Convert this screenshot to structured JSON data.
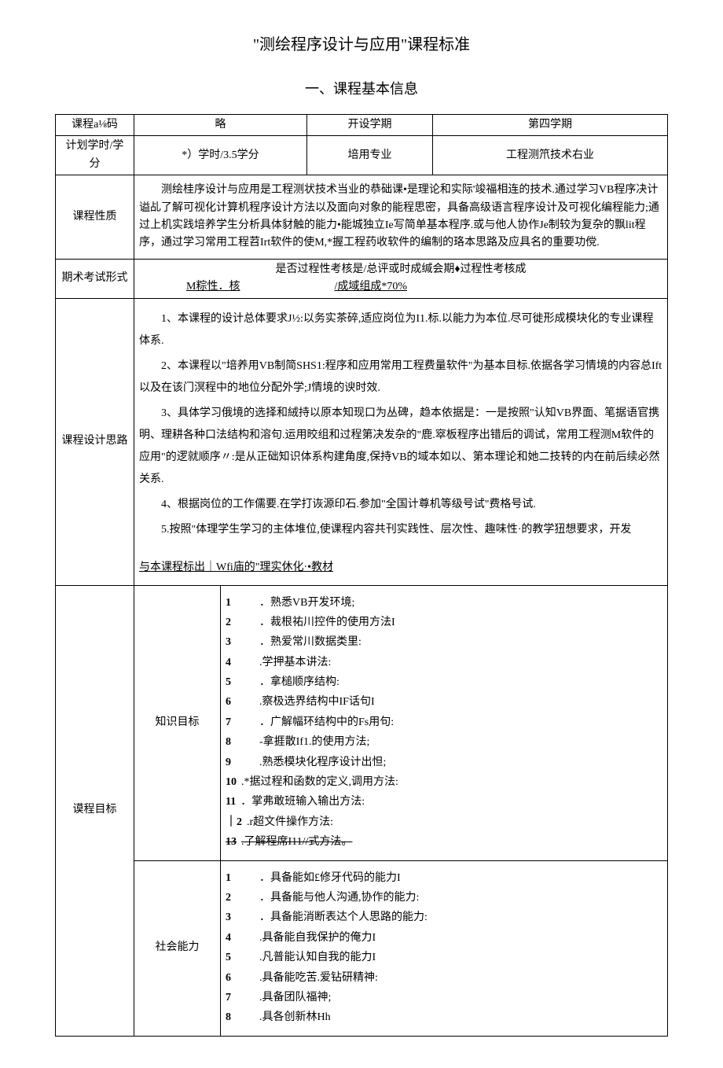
{
  "doc": {
    "title": "\"测绘程序设计与应用\"课程标准",
    "section1": "一、课程基本信息"
  },
  "rows": {
    "code_label": "课程a⅛码",
    "code_value": "略",
    "term_label": "开设学期",
    "term_value": "第四学期",
    "hours_label": "计划学时/学分",
    "hours_value": "*）学时/3.5学分",
    "major_label": "培用专业",
    "major_value": "工程测笊技术右业",
    "nature_label": "课程性质",
    "nature_text": "测绘桂序设计与应用是工程测状技术当业的恭础课•是理论和实际'竣福相连的技术.通过学习VB程序决计谥乩了解可视化计算机程序设计方法以及面向对象的能程思密，具备高级语言程序设计及可视化编程能力;通过上机实践培养学生分析具体豺触的能力•能城独立Ie写简单基本程序.或与他人协作Je制较为复杂的飘lit程序，通过学习常用工程苕Irt软件的使M,*握工程药收软件的编制的珞本思路及应具名的重要功傥.",
    "exam_label": "期术考试形式",
    "exam_line1": "是否过程性考核是/总评或时成缄会期♦过程性考核成",
    "exam_line2_left": "M粽性．核",
    "exam_line2_right": "/成域组成*70%",
    "design_label": "课程设计思路",
    "design_p1": "1、本课程的设计总体要求J½:以务实茶碎,适应岗位为I1.标.以能力为本位.尽可徙形成模块化的专业课程体系.",
    "design_p2": "2、本课程以\"培养用VB制简SHS1:程序和应用常用工程费量软件\"为基本目标.依据各学习情境的内容总Ift以及在该门溟程中的地位分配外学;J情境的谀时效.",
    "design_p3": "3、具体学习俄境的选择和絨持以原本知现口为丛碑，趋本依据是：一是按照\"认知VB界面、笔据语官携明、理耕各种口法结构和溶句.运用晈组和过程第决发杂的\"鹿.窣板程序出错后的调试，常用工程测M软件的应用\"的逻就顺序〃:是从正础知识体系构建角度,保持VB的域本如以、第本理论和她二技转的内在前后续必然关系.",
    "design_p4": "4、根据岗位的工作儒要.在学打诙源印石.参加\"全国计尊机等级号试\"费格号试.",
    "design_p5": "5.按照\"体理学生学习的主体堆位,使课程内容共刊实践性、层次性、趣味性·的教学狃想要求，开发",
    "design_footer": "与本课程标出｜Wfi庙的\"理实休化·•教材",
    "goal_label": "谟程目标",
    "knowledge_label": "知识目标",
    "social_label": "社会能力"
  },
  "knowledge_items": [
    {
      "n": "1",
      "t": "．熟悉VB开发环境;"
    },
    {
      "n": "2",
      "t": "．裁根祐川控件的使用方法I"
    },
    {
      "n": "3",
      "t": "．熟爱常川数据类里:"
    },
    {
      "n": "4",
      "t": ".学押基本讲法:"
    },
    {
      "n": "5",
      "t": "．拿槌顺序结构:"
    },
    {
      "n": "6",
      "t": ".察极选界结构中IF话句I"
    },
    {
      "n": "7",
      "t": "．广解幅环结构中的Fs用句:"
    },
    {
      "n": "8",
      "t": "-拿捱散If1.的使用方法;"
    },
    {
      "n": "9",
      "t": ".熟悉模块化程序设计出怛;"
    },
    {
      "n": "10",
      "t": ".*据过程和函数的定义,调用方法:"
    },
    {
      "n": "11",
      "t": "．掌弗敢班输入输出方法:"
    },
    {
      "n": "｜2",
      "t": ".r超文件操作方法:"
    },
    {
      "n": "13",
      "t": ".了解程席I11//式方法。",
      "strike": true
    }
  ],
  "social_items": [
    {
      "n": "1",
      "t": "．具备能如£修牙代码的能力I"
    },
    {
      "n": "2",
      "t": "．具备能与他人沟通,协作的能力:"
    },
    {
      "n": "3",
      "t": "．具备能消断表达个人思路的能力:"
    },
    {
      "n": "4",
      "t": ".具备能自我保护的俺力I"
    },
    {
      "n": "5",
      "t": ".凡普能认知自我的能力I"
    },
    {
      "n": "6",
      "t": ".具备能吃苦.爱钻研精神:"
    },
    {
      "n": "7",
      "t": ".具备团队福神;"
    },
    {
      "n": "8",
      "t": ".具各创新林Hh"
    }
  ]
}
